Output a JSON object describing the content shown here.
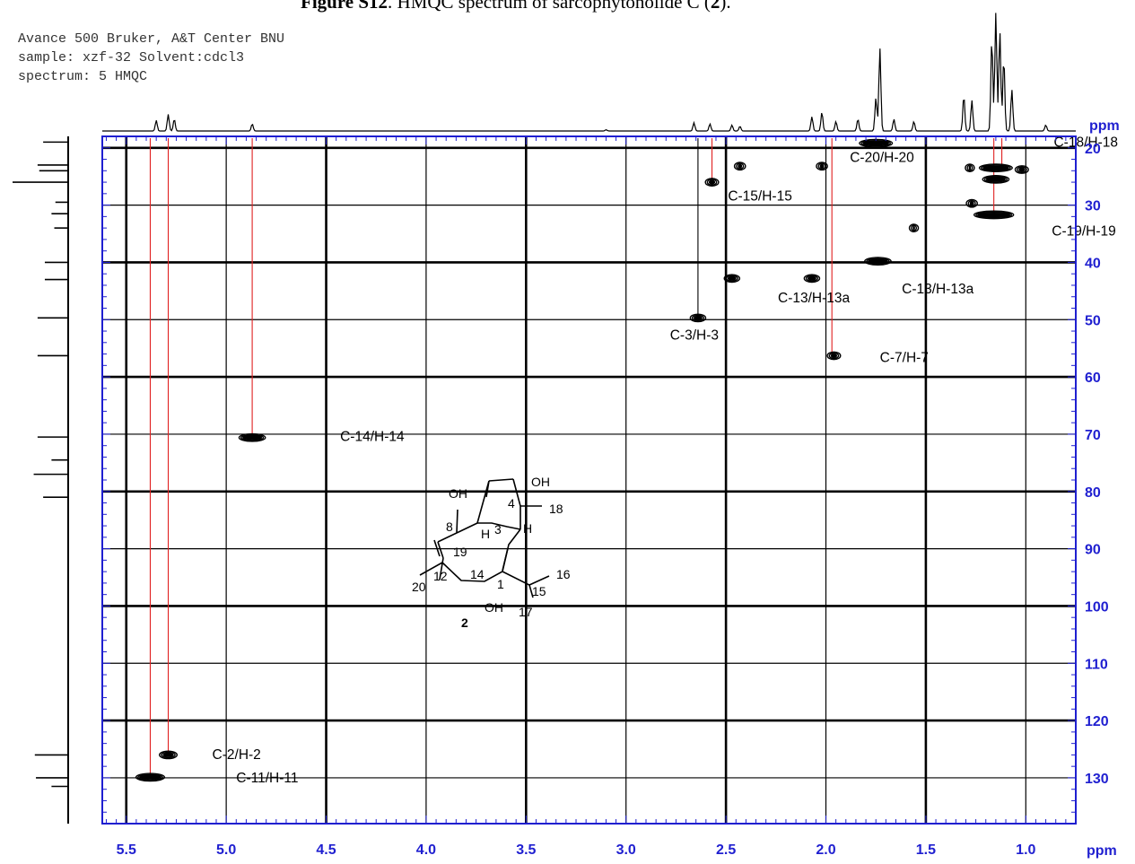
{
  "header": {
    "title_prefix": "Figure S12",
    "title_rest": ". HMQC spectrum of sarcophytonolide C (",
    "title_compound": "2",
    "title_suffix": ")."
  },
  "meta": [
    "Avance 500 Bruker, A&T Center BNU",
    "sample: xzf-32 Solvent:cdcl3",
    "spectrum: 5 HMQC"
  ],
  "colors": {
    "axis": "#1f1fd0",
    "guide": "#e02020",
    "contour": "#000000",
    "grid": "#000000"
  },
  "chart_data": {
    "type": "scatter",
    "title": "",
    "xlabel": "ppm",
    "ylabel": "ppm",
    "xlim": [
      5.62,
      0.75
    ],
    "ylim": [
      18.0,
      138.0
    ],
    "x_reversed": true,
    "grid": true,
    "x_ticks": [
      5.5,
      5.0,
      4.5,
      4.0,
      3.5,
      3.0,
      2.5,
      2.0,
      1.5,
      1.0
    ],
    "x_tick_labels": [
      "5.5",
      "5.0",
      "4.5",
      "4.0",
      "3.5",
      "3.0",
      "2.5",
      "2.0",
      "1.5",
      "1.0"
    ],
    "y_ticks": [
      20,
      30,
      40,
      50,
      60,
      70,
      80,
      90,
      100,
      110,
      120,
      130
    ],
    "y_tick_labels": [
      "20",
      "30",
      "40",
      "50",
      "60",
      "70",
      "80",
      "90",
      "100",
      "110",
      "120",
      "130"
    ],
    "cross_peaks": [
      {
        "h": 1.75,
        "c": 19.2,
        "w": 0.15
      },
      {
        "h": 2.43,
        "c": 23.2,
        "w": 0.05
      },
      {
        "h": 2.02,
        "c": 23.2,
        "w": 0.05
      },
      {
        "h": 1.28,
        "c": 23.5,
        "w": 0.04
      },
      {
        "h": 1.15,
        "c": 23.5,
        "w": 0.15
      },
      {
        "h": 1.02,
        "c": 23.8,
        "w": 0.06
      },
      {
        "h": 1.15,
        "c": 25.5,
        "w": 0.12
      },
      {
        "h": 2.57,
        "c": 26.0,
        "w": 0.06
      },
      {
        "h": 1.27,
        "c": 29.7,
        "w": 0.05
      },
      {
        "h": 1.16,
        "c": 31.7,
        "w": 0.18
      },
      {
        "h": 1.56,
        "c": 34.0,
        "w": 0.03
      },
      {
        "h": 1.74,
        "c": 39.8,
        "w": 0.12
      },
      {
        "h": 2.47,
        "c": 42.8,
        "w": 0.07
      },
      {
        "h": 2.07,
        "c": 42.8,
        "w": 0.07
      },
      {
        "h": 2.64,
        "c": 49.7,
        "w": 0.07
      },
      {
        "h": 1.96,
        "c": 56.3,
        "w": 0.06
      },
      {
        "h": 4.87,
        "c": 70.6,
        "w": 0.12
      },
      {
        "h": 5.29,
        "c": 126.0,
        "w": 0.08
      },
      {
        "h": 5.38,
        "c": 129.9,
        "w": 0.13
      }
    ],
    "annotations": [
      {
        "text": "C-18/H-18",
        "h": 0.86,
        "c": 19.0
      },
      {
        "text": "C-20/H-20",
        "h": 1.88,
        "c": 21.7
      },
      {
        "text": "C-15/H-15",
        "h": 2.49,
        "c": 28.4
      },
      {
        "text": "C-19/H-19",
        "h": 0.87,
        "c": 34.5
      },
      {
        "text": "C-13/H-13a",
        "h": 2.24,
        "c": 46.2
      },
      {
        "text": "C-13/H-13a",
        "h": 1.62,
        "c": 44.6
      },
      {
        "text": "C-3/H-3",
        "h": 2.78,
        "c": 52.7
      },
      {
        "text": "C-7/H-7",
        "h": 1.73,
        "c": 56.6
      },
      {
        "text": "C-14/H-14",
        "h": 4.43,
        "c": 70.4
      },
      {
        "text": "C-2/H-2",
        "h": 5.07,
        "c": 125.9
      },
      {
        "text": "C-11/H-11",
        "h": 4.95,
        "c": 130.0
      }
    ],
    "guide_lines": [
      {
        "h": 5.38,
        "color": "red"
      },
      {
        "h": 5.29,
        "color": "red"
      },
      {
        "h": 4.87,
        "color": "red"
      },
      {
        "h": 2.57,
        "color": "red"
      },
      {
        "h": 1.97,
        "color": "red"
      },
      {
        "h": 1.75,
        "color": "red"
      },
      {
        "h": 1.16,
        "color": "red"
      },
      {
        "h": 1.12,
        "color": "red"
      },
      {
        "h": 2.64,
        "color": "black"
      }
    ],
    "h_projection_peaks": [
      {
        "h": 5.35,
        "i": 0.09
      },
      {
        "h": 5.29,
        "i": 0.14
      },
      {
        "h": 5.26,
        "i": 0.1
      },
      {
        "h": 4.87,
        "i": 0.06
      },
      {
        "h": 3.1,
        "i": 0.01
      },
      {
        "h": 2.66,
        "i": 0.07
      },
      {
        "h": 2.58,
        "i": 0.06
      },
      {
        "h": 2.47,
        "i": 0.05
      },
      {
        "h": 2.43,
        "i": 0.04
      },
      {
        "h": 2.07,
        "i": 0.12
      },
      {
        "h": 2.02,
        "i": 0.16
      },
      {
        "h": 1.95,
        "i": 0.08
      },
      {
        "h": 1.84,
        "i": 0.1
      },
      {
        "h": 1.75,
        "i": 0.28
      },
      {
        "h": 1.73,
        "i": 0.7
      },
      {
        "h": 1.66,
        "i": 0.1
      },
      {
        "h": 1.56,
        "i": 0.08
      },
      {
        "h": 1.31,
        "i": 0.3
      },
      {
        "h": 1.27,
        "i": 0.26
      },
      {
        "h": 1.17,
        "i": 0.78
      },
      {
        "h": 1.15,
        "i": 1.0
      },
      {
        "h": 1.13,
        "i": 0.85
      },
      {
        "h": 1.11,
        "i": 0.62
      },
      {
        "h": 1.07,
        "i": 0.35
      },
      {
        "h": 0.9,
        "i": 0.05
      }
    ],
    "c_projection_peaks": [
      {
        "c": 19.0,
        "i": 0.45
      },
      {
        "c": 23.0,
        "i": 0.55
      },
      {
        "c": 24.0,
        "i": 0.52
      },
      {
        "c": 26.0,
        "i": 1.0
      },
      {
        "c": 29.5,
        "i": 0.23
      },
      {
        "c": 31.5,
        "i": 0.3
      },
      {
        "c": 34.0,
        "i": 0.25
      },
      {
        "c": 40.0,
        "i": 0.42
      },
      {
        "c": 43.0,
        "i": 0.42
      },
      {
        "c": 49.7,
        "i": 0.55
      },
      {
        "c": 56.3,
        "i": 0.55
      },
      {
        "c": 70.5,
        "i": 0.55
      },
      {
        "c": 74.5,
        "i": 0.3
      },
      {
        "c": 77.0,
        "i": 0.62
      },
      {
        "c": 81.0,
        "i": 0.45
      },
      {
        "c": 126.0,
        "i": 0.6
      },
      {
        "c": 130.0,
        "i": 0.58
      },
      {
        "c": 131.5,
        "i": 0.3
      }
    ]
  },
  "structure": {
    "compound_label": "2",
    "oh_labels": [
      "OH",
      "OH",
      "OH"
    ],
    "h_labels": [
      "H",
      "H"
    ],
    "numbers": [
      "4",
      "18",
      "8",
      "3",
      "19",
      "14",
      "1",
      "16",
      "20",
      "12",
      "15",
      "17"
    ]
  }
}
